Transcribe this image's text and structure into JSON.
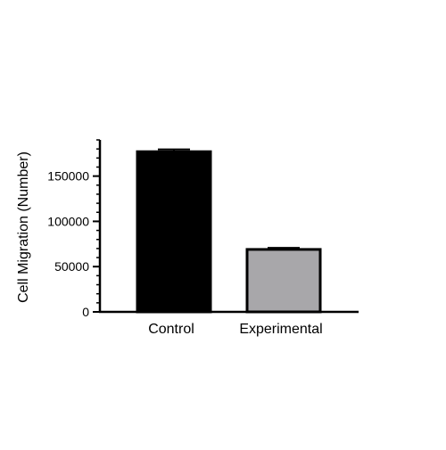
{
  "chart_data": {
    "type": "bar",
    "categories": [
      "Control",
      "Experimental"
    ],
    "values": [
      177000,
      69000
    ],
    "errors": [
      2500,
      1800
    ],
    "bar_colors": [
      "#000000",
      "#a8a7aa"
    ],
    "title": "",
    "xlabel": "",
    "ylabel": "Cell Migration (Number)",
    "ylim": [
      0,
      190000
    ],
    "yticks": [
      0,
      50000,
      100000,
      150000
    ],
    "ytick_labels": [
      "0",
      "50000",
      "100000",
      "150000"
    ],
    "minor_tick_step": 10000,
    "grid": false,
    "legend": "none"
  }
}
